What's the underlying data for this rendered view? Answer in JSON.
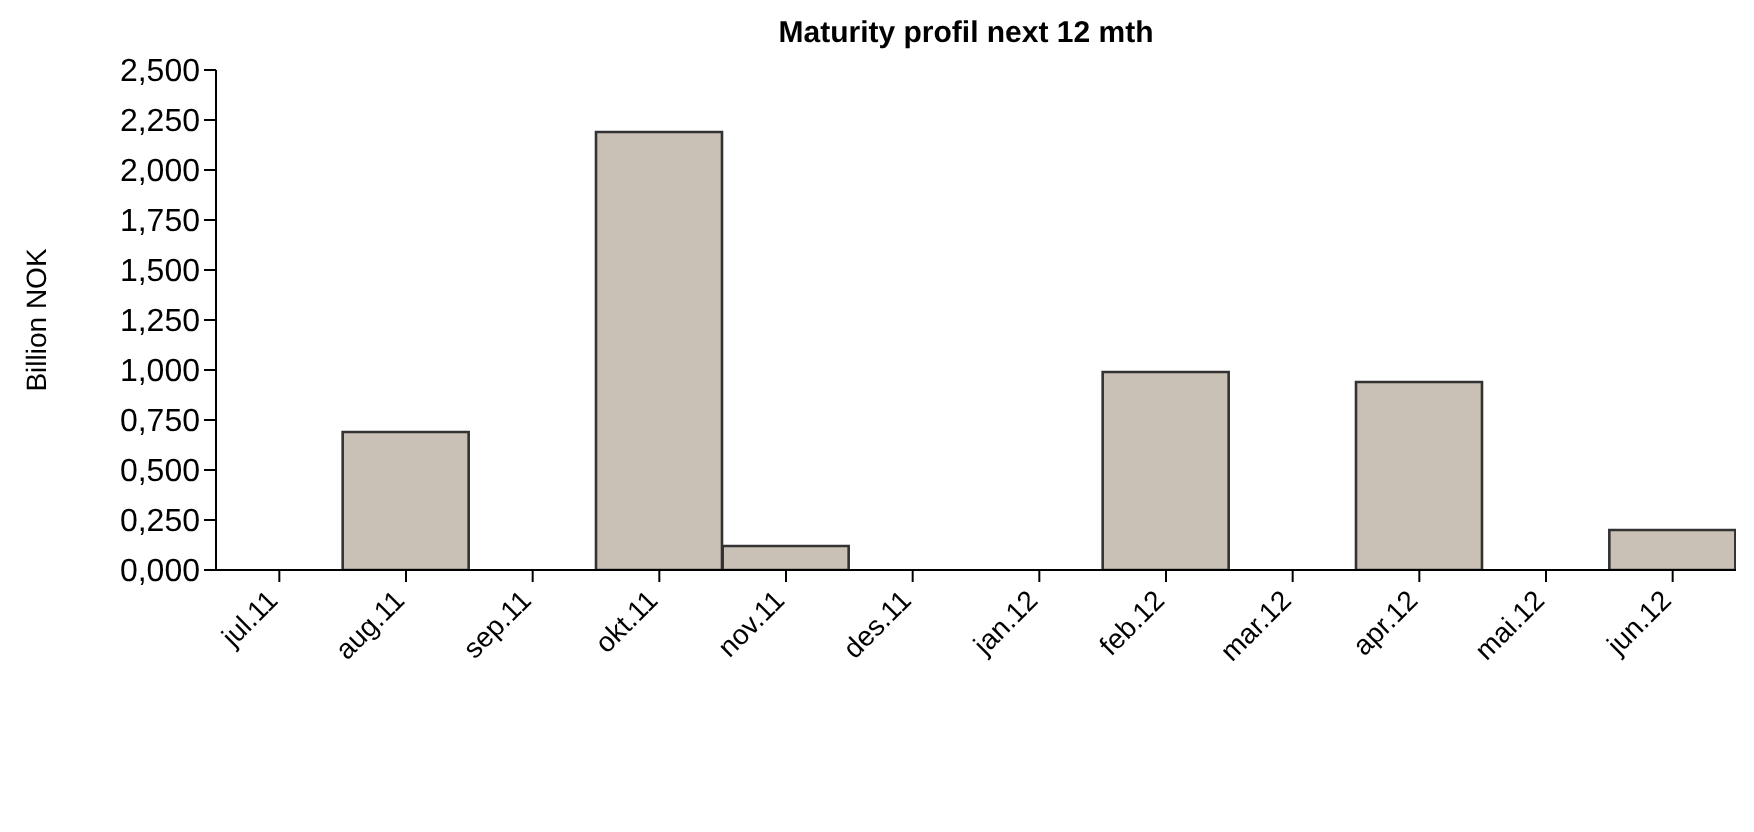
{
  "chart_data": {
    "type": "bar",
    "title": "Maturity profil next 12 mth",
    "ylabel": "Billion NOK",
    "categories": [
      "jul.11",
      "aug.11",
      "sep.11",
      "okt.11",
      "nov.11",
      "des.11",
      "jan.12",
      "feb.12",
      "mar.12",
      "apr.12",
      "mai.12",
      "jun.12"
    ],
    "values": [
      0,
      0.69,
      0,
      2.19,
      0.12,
      0,
      0,
      0.99,
      0,
      0.94,
      0,
      0.2
    ],
    "color": "#c9c0b6",
    "ylim": [
      0,
      2.5
    ],
    "yticks": [
      {
        "value": 0,
        "label": "0,000"
      },
      {
        "value": 0.25,
        "label": "0,250"
      },
      {
        "value": 0.5,
        "label": "0,500"
      },
      {
        "value": 0.75,
        "label": "0,750"
      },
      {
        "value": 1,
        "label": "1,000"
      },
      {
        "value": 1.25,
        "label": "1,250"
      },
      {
        "value": 1.5,
        "label": "1,500"
      },
      {
        "value": 1.75,
        "label": "1,750"
      },
      {
        "value": 2,
        "label": "2,000"
      },
      {
        "value": 2.25,
        "label": "2,250"
      },
      {
        "value": 2.5,
        "label": "2,500"
      }
    ],
    "grid": false,
    "legend": false
  }
}
